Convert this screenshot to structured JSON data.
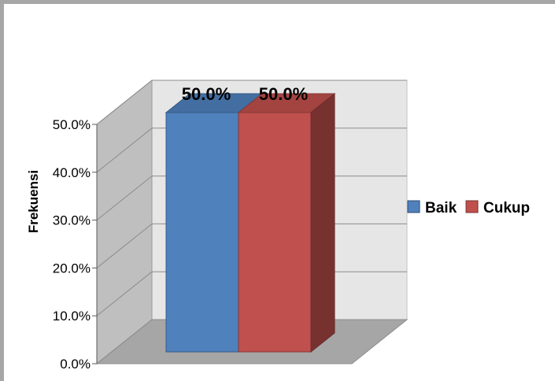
{
  "chart_data": {
    "type": "bar",
    "categories": [
      ""
    ],
    "series": [
      {
        "name": "Baik",
        "values": [
          50.0
        ],
        "color": "#4F81BD",
        "data_label": "50.0%"
      },
      {
        "name": "Cukup",
        "values": [
          50.0
        ],
        "color": "#C0504D",
        "data_label": "50.0%"
      }
    ],
    "title": "",
    "xlabel": "",
    "ylabel": "Frekuensi",
    "ylim": [
      0,
      50
    ],
    "y_ticks": [
      "0.0%",
      "10.0%",
      "20.0%",
      "30.0%",
      "40.0%",
      "50.0%"
    ],
    "grid": true,
    "legend": "right",
    "three_d": true
  }
}
